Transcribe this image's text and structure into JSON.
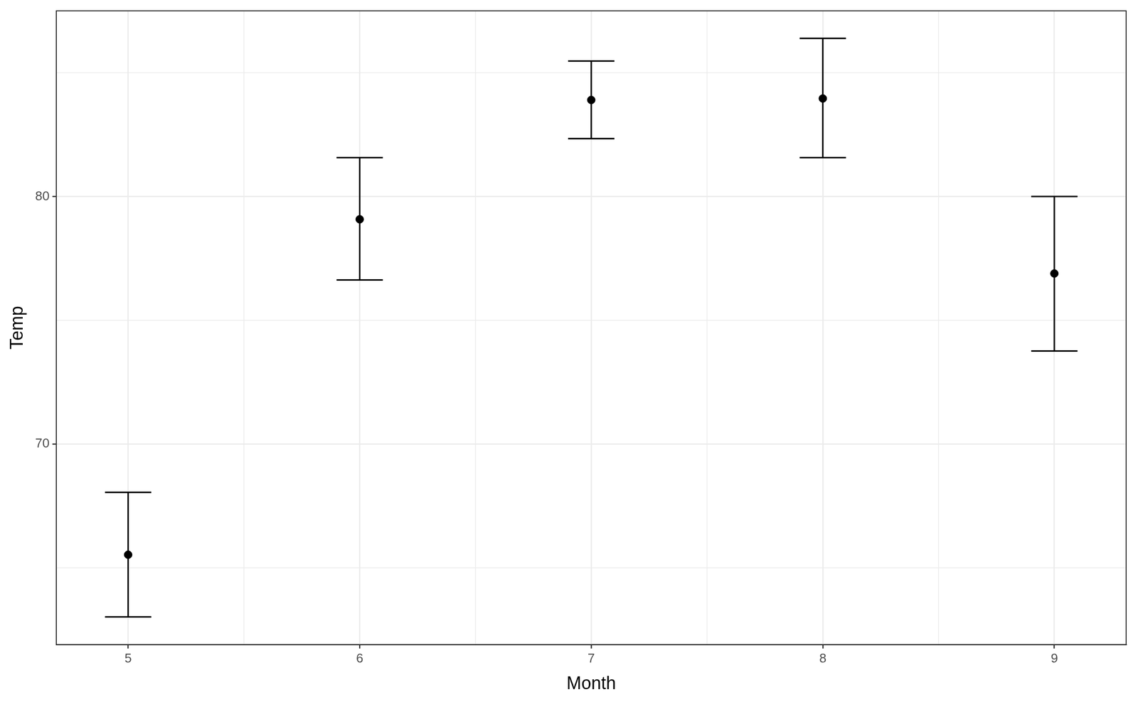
{
  "chart_data": {
    "type": "scatter",
    "x_label": "Month",
    "y_label": "Temp",
    "x": [
      5,
      6,
      7,
      8,
      9
    ],
    "values": [
      65.53,
      79.08,
      83.9,
      83.96,
      76.89
    ],
    "lower": [
      63.02,
      76.63,
      82.34,
      81.57,
      73.76
    ],
    "upper": [
      68.05,
      81.57,
      85.47,
      86.39,
      80.0
    ],
    "color": "#000000",
    "marker": "circle",
    "xlim": [
      4.69,
      9.31
    ],
    "xticks": [
      5,
      6,
      7,
      8,
      9
    ],
    "ylim": [
      61.9,
      87.5
    ],
    "yticks": [
      70,
      80
    ],
    "grid": true
  }
}
